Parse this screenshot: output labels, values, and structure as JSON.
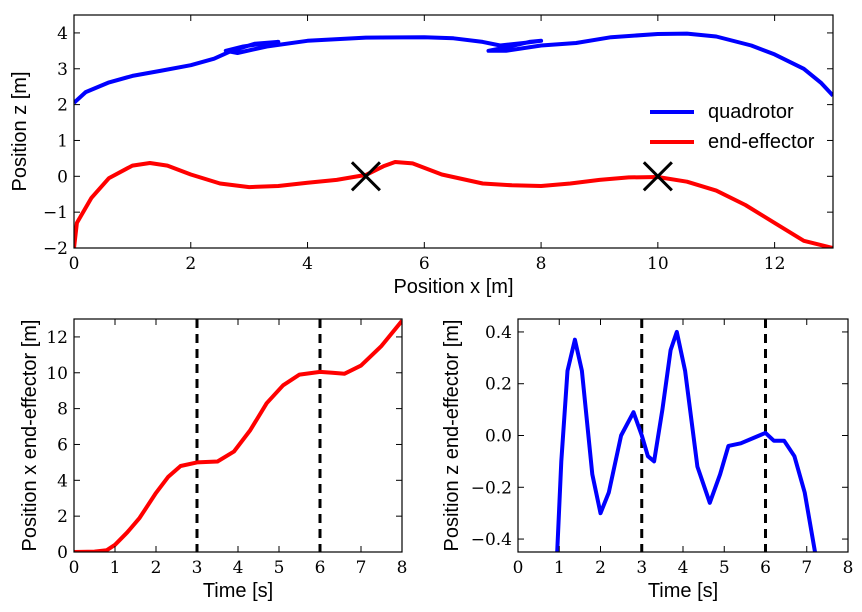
{
  "chart_data": [
    {
      "id": "top",
      "type": "line",
      "xlabel": "Position x [m]",
      "ylabel": "Position z [m]",
      "xlim": [
        0,
        13
      ],
      "ylim": [
        -2,
        4.5
      ],
      "xticks": [
        "0",
        "2",
        "4",
        "6",
        "8",
        "10",
        "12"
      ],
      "yticks": [
        "−2",
        "−1",
        "0",
        "1",
        "2",
        "3",
        "4"
      ],
      "legend": [
        "quadrotor",
        "end-effector"
      ],
      "legend_position": "right",
      "series": [
        {
          "name": "quadrotor",
          "color": "#0000ff",
          "points": [
            [
              0,
              2.05
            ],
            [
              0.2,
              2.35
            ],
            [
              0.6,
              2.62
            ],
            [
              1,
              2.8
            ],
            [
              1.5,
              2.95
            ],
            [
              2,
              3.1
            ],
            [
              2.4,
              3.28
            ],
            [
              2.7,
              3.5
            ],
            [
              3.1,
              3.7
            ],
            [
              3.5,
              3.75
            ],
            [
              3.3,
              3.72
            ],
            [
              2.9,
              3.62
            ],
            [
              2.6,
              3.5
            ],
            [
              2.8,
              3.44
            ],
            [
              3.3,
              3.62
            ],
            [
              4,
              3.78
            ],
            [
              5,
              3.87
            ],
            [
              6,
              3.88
            ],
            [
              6.5,
              3.85
            ],
            [
              7,
              3.75
            ],
            [
              7.3,
              3.65
            ],
            [
              7.7,
              3.72
            ],
            [
              8.0,
              3.78
            ],
            [
              7.8,
              3.75
            ],
            [
              7.4,
              3.6
            ],
            [
              7.1,
              3.5
            ],
            [
              7.4,
              3.5
            ],
            [
              8.0,
              3.65
            ],
            [
              8.6,
              3.72
            ],
            [
              9.2,
              3.88
            ],
            [
              10,
              3.97
            ],
            [
              10.5,
              3.98
            ],
            [
              11,
              3.9
            ],
            [
              11.6,
              3.65
            ],
            [
              12,
              3.4
            ],
            [
              12.5,
              3.0
            ],
            [
              12.8,
              2.6
            ],
            [
              13,
              2.25
            ]
          ]
        },
        {
          "name": "end-effector",
          "color": "#ff0000",
          "points": [
            [
              0,
              -2
            ],
            [
              0.05,
              -1.3
            ],
            [
              0.3,
              -0.6
            ],
            [
              0.6,
              -0.05
            ],
            [
              1,
              0.3
            ],
            [
              1.3,
              0.37
            ],
            [
              1.6,
              0.3
            ],
            [
              2,
              0.05
            ],
            [
              2.5,
              -0.2
            ],
            [
              3,
              -0.3
            ],
            [
              3.5,
              -0.27
            ],
            [
              4,
              -0.18
            ],
            [
              4.5,
              -0.1
            ],
            [
              5,
              0.04
            ],
            [
              5.3,
              0.28
            ],
            [
              5.5,
              0.4
            ],
            [
              5.8,
              0.36
            ],
            [
              6.3,
              0.05
            ],
            [
              7,
              -0.2
            ],
            [
              7.5,
              -0.25
            ],
            [
              8,
              -0.27
            ],
            [
              8.5,
              -0.2
            ],
            [
              9,
              -0.1
            ],
            [
              9.5,
              -0.03
            ],
            [
              10,
              -0.02
            ],
            [
              10.5,
              -0.15
            ],
            [
              11,
              -0.4
            ],
            [
              11.5,
              -0.8
            ],
            [
              12,
              -1.3
            ],
            [
              12.5,
              -1.8
            ],
            [
              13,
              -2
            ]
          ]
        }
      ],
      "markers": [
        {
          "x": 5,
          "z": 0,
          "symbol": "×"
        },
        {
          "x": 10,
          "z": 0,
          "symbol": "×"
        }
      ]
    },
    {
      "id": "bl",
      "type": "line",
      "xlabel": "Time [s]",
      "ylabel": "Position x end-effector [m]",
      "xlim": [
        0,
        8
      ],
      "ylim": [
        0,
        13
      ],
      "xticks": [
        "0",
        "1",
        "2",
        "3",
        "4",
        "5",
        "6",
        "7",
        "8"
      ],
      "yticks": [
        "0",
        "2",
        "4",
        "6",
        "8",
        "10",
        "12"
      ],
      "vlines": [
        3,
        6
      ],
      "series": [
        {
          "name": "x end-effector",
          "color": "#ff0000",
          "points": [
            [
              0,
              0
            ],
            [
              0.5,
              0.02
            ],
            [
              0.8,
              0.1
            ],
            [
              1,
              0.4
            ],
            [
              1.3,
              1.1
            ],
            [
              1.6,
              1.9
            ],
            [
              2,
              3.3
            ],
            [
              2.3,
              4.2
            ],
            [
              2.6,
              4.8
            ],
            [
              3,
              5
            ],
            [
              3.5,
              5.05
            ],
            [
              3.9,
              5.6
            ],
            [
              4.3,
              6.8
            ],
            [
              4.7,
              8.3
            ],
            [
              5.1,
              9.3
            ],
            [
              5.5,
              9.9
            ],
            [
              6,
              10.05
            ],
            [
              6.3,
              10.0
            ],
            [
              6.6,
              9.95
            ],
            [
              7,
              10.4
            ],
            [
              7.5,
              11.5
            ],
            [
              8,
              12.9
            ]
          ]
        }
      ]
    },
    {
      "id": "br",
      "type": "line",
      "xlabel": "Time [s]",
      "ylabel": "Position z end-effector [m]",
      "xlim": [
        0,
        8
      ],
      "ylim": [
        -0.45,
        0.45
      ],
      "xticks": [
        "0",
        "1",
        "2",
        "3",
        "4",
        "5",
        "6",
        "7",
        "8"
      ],
      "yticks": [
        "−0.4",
        "−0.2",
        "0.0",
        "0.2",
        "0.4"
      ],
      "vlines": [
        3,
        6
      ],
      "series": [
        {
          "name": "z end-effector",
          "color": "#0000ff",
          "points": [
            [
              0.95,
              -0.45
            ],
            [
              1.05,
              -0.1
            ],
            [
              1.2,
              0.25
            ],
            [
              1.38,
              0.37
            ],
            [
              1.55,
              0.25
            ],
            [
              1.8,
              -0.15
            ],
            [
              2.0,
              -0.3
            ],
            [
              2.2,
              -0.22
            ],
            [
              2.5,
              0.0
            ],
            [
              2.8,
              0.09
            ],
            [
              3.0,
              0.0
            ],
            [
              3.15,
              -0.08
            ],
            [
              3.3,
              -0.1
            ],
            [
              3.5,
              0.1
            ],
            [
              3.7,
              0.33
            ],
            [
              3.85,
              0.4
            ],
            [
              4.05,
              0.25
            ],
            [
              4.35,
              -0.12
            ],
            [
              4.65,
              -0.26
            ],
            [
              4.9,
              -0.15
            ],
            [
              5.1,
              -0.04
            ],
            [
              5.4,
              -0.03
            ],
            [
              5.7,
              -0.01
            ],
            [
              6.0,
              0.01
            ],
            [
              6.2,
              -0.02
            ],
            [
              6.45,
              -0.02
            ],
            [
              6.7,
              -0.08
            ],
            [
              6.95,
              -0.22
            ],
            [
              7.2,
              -0.45
            ]
          ]
        }
      ]
    }
  ]
}
